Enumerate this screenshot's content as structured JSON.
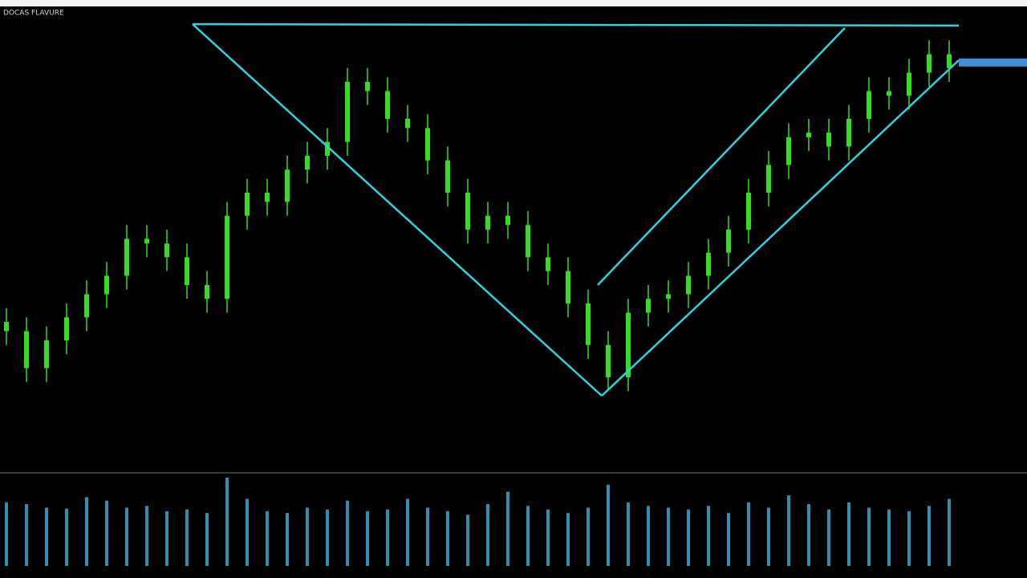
{
  "chart_data": [
    {
      "type": "candlestick",
      "title": "DOCAS FLAVURE",
      "color": "#33dd22",
      "x": [
        0,
        1,
        2,
        3,
        4,
        5,
        6,
        7,
        8,
        9,
        10,
        11,
        12,
        13,
        14,
        15,
        16,
        17,
        18,
        19,
        20,
        21,
        22,
        23,
        24,
        25,
        26,
        27,
        28,
        29,
        30,
        31,
        32,
        33,
        34,
        35,
        36,
        37,
        38,
        39,
        40,
        41,
        42,
        43,
        44,
        45,
        46,
        47
      ],
      "open": [
        32,
        30,
        22,
        28,
        33,
        38,
        42,
        50,
        49,
        46,
        40,
        37,
        55,
        60,
        58,
        65,
        68,
        71,
        84,
        82,
        76,
        74,
        67,
        60,
        52,
        55,
        53,
        46,
        43,
        36,
        27,
        20,
        34,
        37,
        38,
        42,
        47,
        52,
        60,
        66,
        72,
        73,
        70,
        76,
        82,
        81,
        86,
        90
      ],
      "high": [
        35,
        33,
        31,
        36,
        41,
        45,
        53,
        53,
        52,
        49,
        43,
        58,
        63,
        63,
        68,
        71,
        74,
        87,
        87,
        85,
        79,
        77,
        70,
        63,
        58,
        58,
        56,
        49,
        46,
        39,
        30,
        37,
        40,
        41,
        45,
        50,
        55,
        63,
        69,
        75,
        76,
        76,
        79,
        85,
        85,
        89,
        93,
        93
      ],
      "low": [
        27,
        19,
        19,
        25,
        30,
        35,
        39,
        46,
        43,
        37,
        34,
        34,
        52,
        55,
        55,
        62,
        65,
        68,
        79,
        73,
        71,
        64,
        57,
        49,
        49,
        50,
        43,
        40,
        33,
        24,
        17,
        17,
        31,
        34,
        35,
        39,
        44,
        49,
        57,
        63,
        69,
        67,
        67,
        73,
        78,
        78,
        83,
        84
      ],
      "close": [
        30,
        22,
        28,
        33,
        38,
        42,
        50,
        49,
        46,
        40,
        37,
        55,
        60,
        58,
        65,
        68,
        71,
        84,
        82,
        76,
        74,
        67,
        60,
        52,
        55,
        53,
        46,
        43,
        36,
        27,
        20,
        34,
        37,
        38,
        42,
        47,
        52,
        60,
        66,
        72,
        73,
        70,
        76,
        82,
        81,
        86,
        90,
        87
      ],
      "xlim": [
        -0.32,
        47.48
      ],
      "ylim": [
        0,
        100
      ],
      "trendline_color": "#2fd3e0",
      "trendlines": [
        {
          "x": [
            9.28,
            29.68
          ],
          "y": [
            96.5,
            16
          ]
        },
        {
          "x": [
            9.28,
            47.48
          ],
          "y": [
            96.5,
            96.2
          ]
        },
        {
          "x": [
            29.68,
            47.48
          ],
          "y": [
            16,
            88.7
          ]
        },
        {
          "x": [
            29.48,
            41.8
          ],
          "y": [
            40,
            95.7
          ]
        }
      ],
      "price_marker": 88.2,
      "price_marker_color": "#3a8fd8"
    },
    {
      "type": "bar",
      "color": "#2e8fb0",
      "x": [
        0,
        1,
        2,
        3,
        4,
        5,
        6,
        7,
        8,
        9,
        10,
        11,
        12,
        13,
        14,
        15,
        16,
        17,
        18,
        19,
        20,
        21,
        22,
        23,
        24,
        25,
        26,
        27,
        28,
        29,
        30,
        31,
        32,
        33,
        34,
        35,
        36,
        37,
        38,
        39,
        40,
        41,
        42,
        43,
        44,
        45,
        46,
        47
      ],
      "values": [
        72,
        70,
        66,
        65,
        78,
        74,
        66,
        68,
        62,
        64,
        60,
        100,
        76,
        62,
        60,
        66,
        64,
        74,
        62,
        64,
        76,
        66,
        62,
        58,
        70,
        84,
        68,
        64,
        60,
        66,
        92,
        72,
        68,
        66,
        64,
        68,
        60,
        72,
        66,
        80,
        70,
        64,
        72,
        66,
        64,
        62,
        68,
        76
      ],
      "xlim": [
        -0.32,
        47.48
      ],
      "ylim": [
        0,
        100
      ]
    }
  ]
}
